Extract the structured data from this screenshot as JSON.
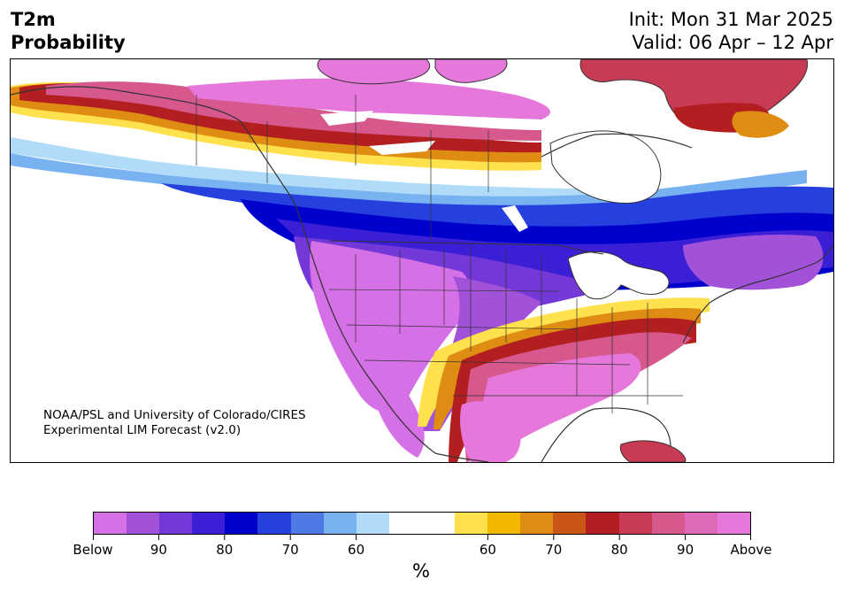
{
  "title": {
    "left_line1": "T2m",
    "left_line2": "Probability",
    "init": "Init: Mon 31 Mar 2025",
    "valid": "Valid: 06 Apr – 12 Apr"
  },
  "credit": {
    "line1": "NOAA/PSL and University of Colorado/CIRES",
    "line2": "Experimental LIM Forecast (v2.0)"
  },
  "colorbar": {
    "segments": [
      "#d670e6",
      "#a152d9",
      "#7438d9",
      "#3a1fd6",
      "#0000cc",
      "#2640de",
      "#4f7ae6",
      "#78b2f0",
      "#b0dcfa",
      "#ffffff",
      "#ffffff",
      "#ffe04d",
      "#f2b800",
      "#de8c12",
      "#c95516",
      "#b31f21",
      "#c93a54",
      "#d6588c",
      "#de6ab8",
      "#e677db"
    ],
    "labels": [
      "Below",
      "90",
      "80",
      "70",
      "60",
      "60",
      "70",
      "80",
      "90",
      "Above"
    ],
    "label_positions": [
      0,
      0.1,
      0.2,
      0.3,
      0.4,
      0.6,
      0.7,
      0.8,
      0.9,
      1.0
    ],
    "unit": "%"
  },
  "map": {
    "legend_meaning": "probability of below (cool colors) vs above (warm colors) normal 2m temperature",
    "region": "North America",
    "colors": {
      "below_max": "#d670e6",
      "below_strong": "#7438d9",
      "below_deep": "#0000cc",
      "below_mid": "#4f7ae6",
      "below_light": "#b0dcfa",
      "neutral": "#ffffff",
      "above_light": "#ffe04d",
      "above_mid": "#de8c12",
      "above_strong": "#b31f21",
      "above_max": "#e677db",
      "coast": "#333333"
    }
  }
}
